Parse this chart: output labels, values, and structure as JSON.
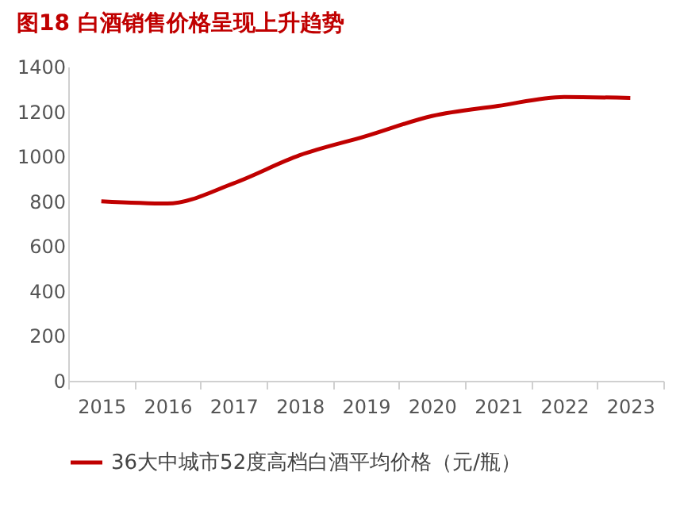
{
  "chart_data": {
    "type": "line",
    "title": "图18  白酒销售价格呈现上升趋势",
    "categories": [
      "2015",
      "2016",
      "2017",
      "2018",
      "2019",
      "2020",
      "2021",
      "2022",
      "2023"
    ],
    "series": [
      {
        "name": "36大中城市52度高档白酒平均价格（元/瓶）",
        "color": "#c00000",
        "values": [
          800,
          790,
          880,
          1005,
          1090,
          1180,
          1225,
          1265,
          1260
        ]
      }
    ],
    "ylim": [
      0,
      1400
    ],
    "yticks": [
      0,
      200,
      400,
      600,
      800,
      1000,
      1200,
      1400
    ],
    "grid": false,
    "legend": "bottom",
    "marker": "none",
    "line_style": "solid"
  }
}
